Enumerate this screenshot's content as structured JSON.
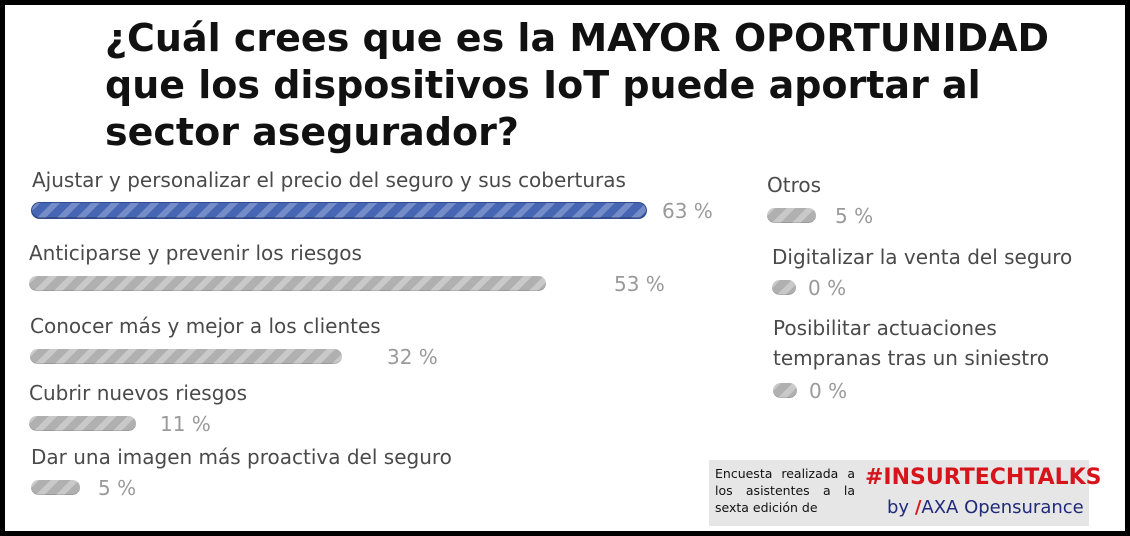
{
  "chart_data": {
    "type": "bar",
    "title": "¿Cuál crees que es la MAYOR OPORTUNIDAD que los dispositivos IoT puede aportar al sector asegurador?",
    "unit": "%",
    "categories": [
      "Ajustar y personalizar el precio del seguro y sus coberturas",
      "Anticiparse y prevenir los riesgos",
      "Conocer más y mejor a los clientes",
      "Cubrir nuevos riesgos",
      "Dar una imagen más proactiva del seguro",
      "Otros",
      "Digitalizar la venta del seguro",
      "Posibilitar actuaciones tempranas tras un siniestro"
    ],
    "values": [
      63,
      53,
      32,
      11,
      5,
      5,
      0,
      0
    ],
    "value_labels": [
      "63 %",
      "53 %",
      "32 %",
      "11 %",
      "5 %",
      "5 %",
      "0 %",
      "0 %"
    ],
    "highlight_color": "#4666b4",
    "bar_color": "#b0b0b0"
  },
  "credit": {
    "text": "Encuesta realizada a los asistentes a la sexta edición de",
    "hashtag": "#INSURTECHTALKS",
    "by": "by",
    "slash": "/",
    "brand": "AXA Opensurance",
    "hashtag_color": "#d6141c"
  }
}
